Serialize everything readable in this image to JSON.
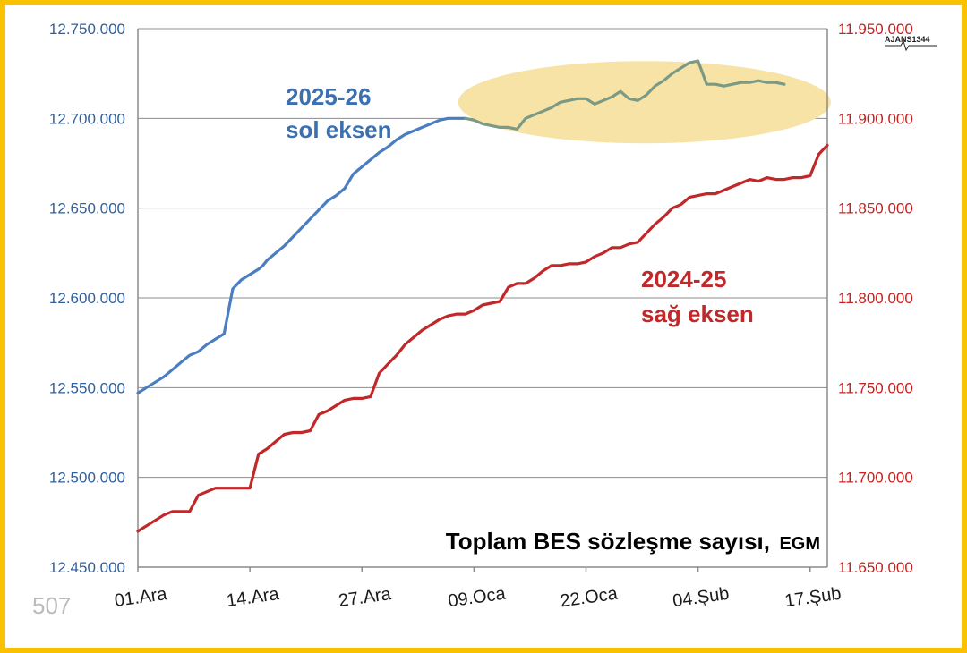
{
  "chart_data": {
    "type": "line",
    "title": "Toplam BES sözleşme sayısı,",
    "source": "EGM",
    "corner_number": "507",
    "logo_text": "AJANS1344",
    "xlabel": "",
    "x_tick_labels": [
      "01.Ara",
      "14.Ara",
      "27.Ara",
      "09.Oca",
      "22.Oca",
      "04.Şub",
      "17.Şub"
    ],
    "x_tick_days": [
      0,
      13,
      26,
      39,
      52,
      65,
      78
    ],
    "xlim": [
      0,
      80
    ],
    "y_left": {
      "label": "",
      "ylim": [
        12450000,
        12750000
      ],
      "ticks": [
        12450000,
        12500000,
        12550000,
        12600000,
        12650000,
        12700000,
        12750000
      ],
      "tick_labels": [
        "12.450.000",
        "12.500.000",
        "12.550.000",
        "12.600.000",
        "12.650.000",
        "12.700.000",
        "12.750.000"
      ],
      "color": "#2E5F9E"
    },
    "y_right": {
      "label": "",
      "ylim": [
        11650000,
        11950000
      ],
      "ticks": [
        11650000,
        11700000,
        11750000,
        11800000,
        11850000,
        11900000,
        11950000
      ],
      "tick_labels": [
        "11.650.000",
        "11.700.000",
        "11.750.000",
        "11.800.000",
        "11.850.000",
        "11.900.000",
        "11.950.000"
      ],
      "color": "#C8201E"
    },
    "grid": true,
    "series": [
      {
        "name": "2025-26 sol eksen",
        "label_line1": "2025-26",
        "label_line2": "sol eksen",
        "axis": "left",
        "color": "#4A7EC0",
        "x": [
          0,
          1,
          2,
          3,
          4,
          5,
          6,
          7,
          8,
          9,
          10,
          11,
          12,
          13,
          14,
          14.5,
          15,
          16,
          17,
          18,
          19,
          20,
          21,
          22,
          23,
          24,
          25,
          26,
          27,
          28,
          29,
          30,
          31,
          32,
          33,
          34,
          35,
          36,
          37,
          38
        ],
        "values": [
          12547000,
          12550000,
          12553000,
          12556000,
          12560000,
          12564000,
          12568000,
          12570000,
          12574000,
          12577000,
          12580000,
          12605000,
          12610000,
          12613000,
          12616000,
          12618000,
          12621000,
          12625000,
          12629000,
          12634000,
          12639000,
          12644000,
          12649000,
          12654000,
          12657000,
          12661000,
          12669000,
          12673000,
          12677000,
          12681000,
          12684000,
          12688000,
          12691000,
          12693000,
          12695000,
          12697000,
          12699000,
          12700000,
          12700000,
          12700000
        ]
      },
      {
        "name": "2025-26 highlighted",
        "axis": "left",
        "color": "#7A9A86",
        "x": [
          38,
          39,
          40,
          41,
          42,
          43,
          44,
          45,
          46,
          47,
          48,
          49,
          50,
          51,
          52,
          53,
          54,
          55,
          56,
          57,
          58,
          59,
          60,
          61,
          62,
          63,
          64,
          65,
          66,
          67,
          68,
          69,
          70,
          71,
          72,
          73,
          74,
          75
        ],
        "values": [
          12700000,
          12699000,
          12697000,
          12696000,
          12695000,
          12695000,
          12694000,
          12700000,
          12702000,
          12704000,
          12706000,
          12709000,
          12710000,
          12711000,
          12711000,
          12708000,
          12710000,
          12712000,
          12715000,
          12711000,
          12710000,
          12713000,
          12718000,
          12721000,
          12725000,
          12728000,
          12731000,
          12732000,
          12719000,
          12719000,
          12718000,
          12719000,
          12720000,
          12720000,
          12721000,
          12720000,
          12720000,
          12719000
        ]
      },
      {
        "name": "2024-25 sağ eksen",
        "label_line1": "2024-25",
        "label_line2": "sağ eksen",
        "axis": "right",
        "color": "#C0282A",
        "x": [
          0,
          1,
          2,
          3,
          4,
          5,
          6,
          7,
          8,
          9,
          10,
          11,
          12,
          13,
          14,
          15,
          16,
          17,
          18,
          19,
          20,
          21,
          22,
          23,
          24,
          25,
          26,
          27,
          28,
          29,
          30,
          31,
          32,
          33,
          34,
          35,
          36,
          37,
          38,
          39,
          40,
          41,
          42,
          43,
          44,
          45,
          46,
          47,
          48,
          49,
          50,
          51,
          52,
          53,
          54,
          55,
          56,
          57,
          58,
          59,
          60,
          61,
          62,
          63,
          64,
          65,
          66,
          67,
          68,
          69,
          70,
          71,
          72,
          73,
          74,
          75,
          76,
          77,
          78,
          79,
          80
        ],
        "values": [
          11670000,
          11673000,
          11676000,
          11679000,
          11681000,
          11681000,
          11681000,
          11690000,
          11692000,
          11694000,
          11694000,
          11694000,
          11694000,
          11694000,
          11713000,
          11716000,
          11720000,
          11724000,
          11725000,
          11725000,
          11726000,
          11735000,
          11737000,
          11740000,
          11743000,
          11744000,
          11744000,
          11745000,
          11758000,
          11763000,
          11768000,
          11774000,
          11778000,
          11782000,
          11785000,
          11788000,
          11790000,
          11791000,
          11791000,
          11793000,
          11796000,
          11797000,
          11798000,
          11806000,
          11808000,
          11808000,
          11811000,
          11815000,
          11818000,
          11818000,
          11819000,
          11819000,
          11820000,
          11823000,
          11825000,
          11828000,
          11828000,
          11830000,
          11831000,
          11836000,
          11841000,
          11845000,
          11850000,
          11852000,
          11856000,
          11857000,
          11858000,
          11858000,
          11860000,
          11862000,
          11864000,
          11866000,
          11865000,
          11867000,
          11866000,
          11866000,
          11867000,
          11867000,
          11868000,
          11880000,
          11885000
        ]
      }
    ],
    "highlight": {
      "shape": "ellipse",
      "color": "#F7E3A6",
      "x_range": [
        38,
        75
      ],
      "y_center_left": 12709000,
      "axis": "left"
    }
  }
}
